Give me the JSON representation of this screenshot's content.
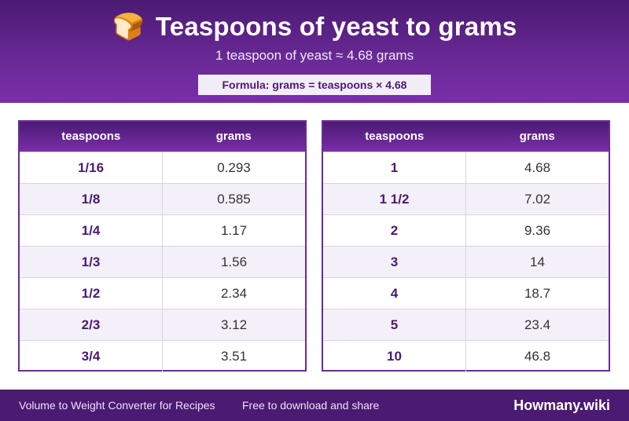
{
  "header": {
    "icon": "bread-icon",
    "emoji": "🍞",
    "title": "Teaspoons of yeast to grams",
    "subtitle": "1 teaspoon of yeast ≈ 4.68 grams",
    "formula": "Formula: grams = teaspoons × 4.68"
  },
  "colors": {
    "primary": "#6a2a97",
    "dark": "#4b1a73",
    "row_alt": "#f4f0fa"
  },
  "tables": [
    {
      "columns": [
        "teaspoons",
        "grams"
      ],
      "rows": [
        [
          "1/16",
          "0.293"
        ],
        [
          "1/8",
          "0.585"
        ],
        [
          "1/4",
          "1.17"
        ],
        [
          "1/3",
          "1.56"
        ],
        [
          "1/2",
          "2.34"
        ],
        [
          "2/3",
          "3.12"
        ],
        [
          "3/4",
          "3.51"
        ]
      ]
    },
    {
      "columns": [
        "teaspoons",
        "grams"
      ],
      "rows": [
        [
          "1",
          "4.68"
        ],
        [
          "1 1/2",
          "7.02"
        ],
        [
          "2",
          "9.36"
        ],
        [
          "3",
          "14"
        ],
        [
          "4",
          "18.7"
        ],
        [
          "5",
          "23.4"
        ],
        [
          "10",
          "46.8"
        ]
      ]
    }
  ],
  "footer": {
    "left": "Volume to Weight Converter for Recipes",
    "middle": "Free to download and share",
    "brand": "Howmany.wiki"
  }
}
